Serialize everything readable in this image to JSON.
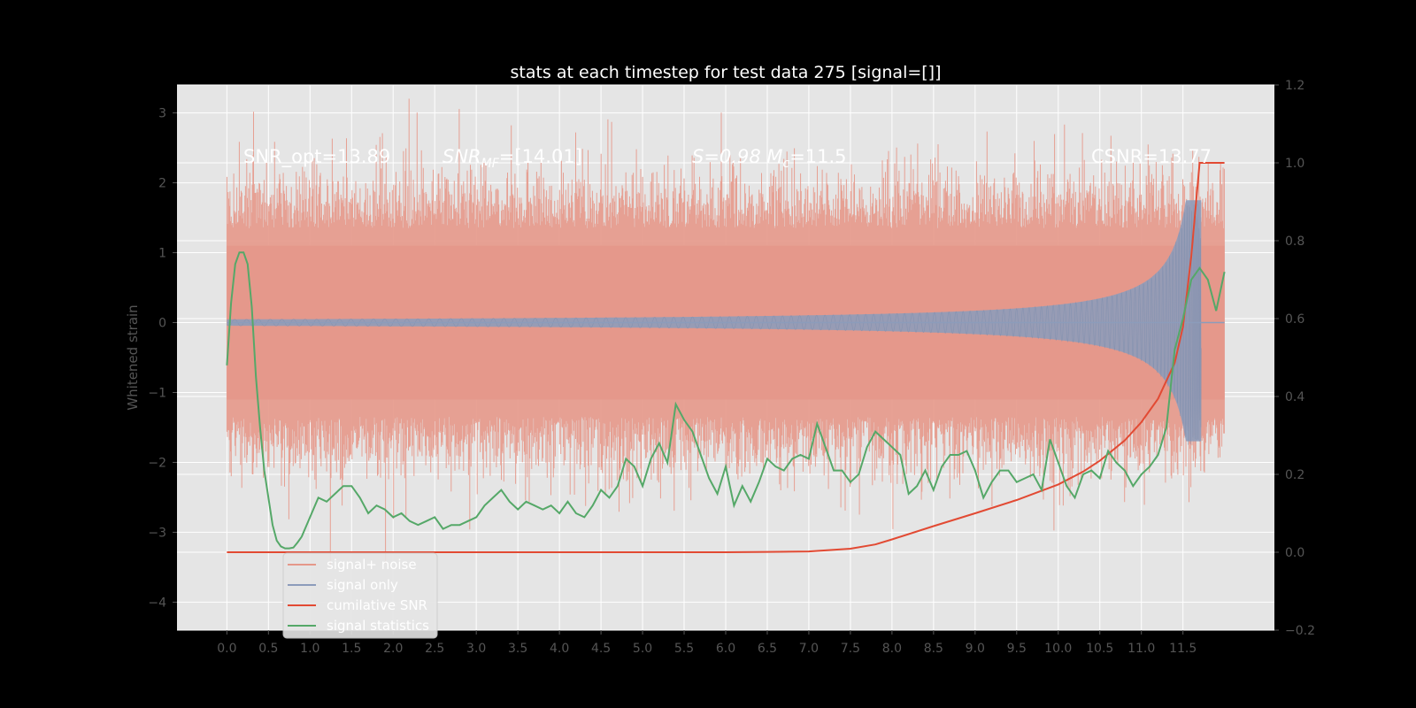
{
  "chart_data": {
    "type": "line",
    "title": "stats at each timestep for test data 275 [signal=[]]",
    "ylabel": "Whitened strain",
    "xlim": [
      -0.6,
      12.6
    ],
    "ylim": [
      -4.4,
      3.4
    ],
    "y2lim": [
      -0.2,
      1.2
    ],
    "grid": true,
    "legend_placement": "lower-left",
    "x_ticks": [
      "0.0",
      "0.5",
      "1.0",
      "1.5",
      "2.0",
      "2.5",
      "3.0",
      "3.5",
      "4.0",
      "4.5",
      "5.0",
      "5.5",
      "6.0",
      "6.5",
      "7.0",
      "7.5",
      "8.0",
      "8.5",
      "9.0",
      "9.5",
      "10.0",
      "10.5",
      "11.0",
      "11.5"
    ],
    "y_ticks": [
      "3",
      "2",
      "1",
      "0",
      "−1",
      "−2",
      "−3",
      "−4"
    ],
    "y2_ticks": [
      "1.2",
      "1.0",
      "0.8",
      "0.6",
      "0.4",
      "0.2",
      "0.0",
      "−0.2"
    ],
    "annotations": [
      {
        "id": "snr-opt",
        "text": "SNR_opt=13.89"
      },
      {
        "id": "snr-mf",
        "text": "SNR",
        "sub": "MF",
        "rest": "=[14.01]"
      },
      {
        "id": "s-mc",
        "text": "S=0.98   M",
        "sub": "c",
        "rest": "=11.5"
      },
      {
        "id": "csnr",
        "text": "CSNR=13.77"
      }
    ],
    "series": [
      {
        "name": "signal+ noise",
        "color": "#E5988A",
        "axis": "left",
        "description": "whitened noisy data, roughly within ±2 with spikes to ±3"
      },
      {
        "name": "signal only",
        "color": "#8C9CBB",
        "axis": "left",
        "description": "chirp with growing amplitude, peak about ±1.75 near t=11.7 s"
      },
      {
        "name": "cumilative SNR",
        "color": "#E24A33",
        "axis": "right",
        "x": [
          0.0,
          5.0,
          6.0,
          6.5,
          7.0,
          7.5,
          7.8,
          8.0,
          8.5,
          9.0,
          9.5,
          10.0,
          10.3,
          10.5,
          10.8,
          11.0,
          11.2,
          11.4,
          11.5,
          11.6,
          11.7,
          12.0
        ],
        "y": [
          0.0,
          0.0,
          0.0,
          0.001,
          0.002,
          0.009,
          0.02,
          0.033,
          0.067,
          0.1,
          0.134,
          0.174,
          0.207,
          0.235,
          0.287,
          0.334,
          0.394,
          0.486,
          0.579,
          0.761,
          1.0,
          1.0
        ]
      },
      {
        "name": "signal statistics",
        "color": "#55A868",
        "axis": "right",
        "x": [
          0.0,
          0.05,
          0.1,
          0.15,
          0.2,
          0.25,
          0.3,
          0.35,
          0.4,
          0.45,
          0.5,
          0.55,
          0.6,
          0.65,
          0.7,
          0.75,
          0.8,
          0.85,
          0.9,
          1.0,
          1.1,
          1.2,
          1.3,
          1.4,
          1.5,
          1.6,
          1.7,
          1.8,
          1.9,
          2.0,
          2.1,
          2.2,
          2.3,
          2.4,
          2.5,
          2.6,
          2.7,
          2.8,
          2.9,
          3.0,
          3.1,
          3.2,
          3.3,
          3.4,
          3.5,
          3.6,
          3.7,
          3.8,
          3.9,
          4.0,
          4.1,
          4.2,
          4.3,
          4.4,
          4.5,
          4.6,
          4.7,
          4.8,
          4.9,
          5.0,
          5.1,
          5.2,
          5.3,
          5.4,
          5.5,
          5.6,
          5.7,
          5.8,
          5.9,
          6.0,
          6.1,
          6.2,
          6.3,
          6.4,
          6.5,
          6.6,
          6.7,
          6.8,
          6.9,
          7.0,
          7.1,
          7.2,
          7.3,
          7.4,
          7.5,
          7.6,
          7.7,
          7.8,
          7.9,
          8.0,
          8.1,
          8.2,
          8.3,
          8.4,
          8.5,
          8.6,
          8.7,
          8.8,
          8.9,
          9.0,
          9.1,
          9.2,
          9.3,
          9.4,
          9.5,
          9.6,
          9.7,
          9.8,
          9.9,
          10.0,
          10.1,
          10.2,
          10.3,
          10.4,
          10.5,
          10.6,
          10.7,
          10.8,
          10.9,
          11.0,
          11.1,
          11.2,
          11.3,
          11.4,
          11.5,
          11.6,
          11.7,
          11.8,
          11.9,
          12.0
        ],
        "y": [
          0.48,
          0.64,
          0.74,
          0.77,
          0.77,
          0.74,
          0.63,
          0.45,
          0.32,
          0.21,
          0.14,
          0.07,
          0.03,
          0.015,
          0.01,
          0.01,
          0.012,
          0.025,
          0.04,
          0.09,
          0.14,
          0.13,
          0.15,
          0.17,
          0.17,
          0.14,
          0.1,
          0.12,
          0.11,
          0.09,
          0.1,
          0.08,
          0.07,
          0.08,
          0.09,
          0.06,
          0.07,
          0.07,
          0.08,
          0.09,
          0.12,
          0.14,
          0.16,
          0.13,
          0.11,
          0.13,
          0.12,
          0.11,
          0.12,
          0.1,
          0.13,
          0.1,
          0.09,
          0.12,
          0.16,
          0.14,
          0.17,
          0.24,
          0.22,
          0.17,
          0.24,
          0.28,
          0.23,
          0.38,
          0.34,
          0.31,
          0.25,
          0.19,
          0.15,
          0.22,
          0.12,
          0.17,
          0.13,
          0.18,
          0.24,
          0.22,
          0.21,
          0.24,
          0.25,
          0.24,
          0.33,
          0.27,
          0.21,
          0.21,
          0.18,
          0.2,
          0.27,
          0.31,
          0.29,
          0.27,
          0.25,
          0.15,
          0.17,
          0.21,
          0.16,
          0.22,
          0.25,
          0.25,
          0.26,
          0.21,
          0.14,
          0.18,
          0.21,
          0.21,
          0.18,
          0.19,
          0.2,
          0.16,
          0.29,
          0.23,
          0.17,
          0.14,
          0.2,
          0.21,
          0.19,
          0.26,
          0.23,
          0.21,
          0.17,
          0.2,
          0.22,
          0.25,
          0.32,
          0.52,
          0.6,
          0.7,
          0.73,
          0.7,
          0.62,
          0.72
        ]
      }
    ]
  },
  "legend": {
    "items": [
      {
        "label": "signal+ noise",
        "color": "#E5988A"
      },
      {
        "label": "signal only",
        "color": "#8C9CBB"
      },
      {
        "label": "cumilative SNR",
        "color": "#E24A33"
      },
      {
        "label": "signal statistics",
        "color": "#55A868"
      }
    ]
  }
}
